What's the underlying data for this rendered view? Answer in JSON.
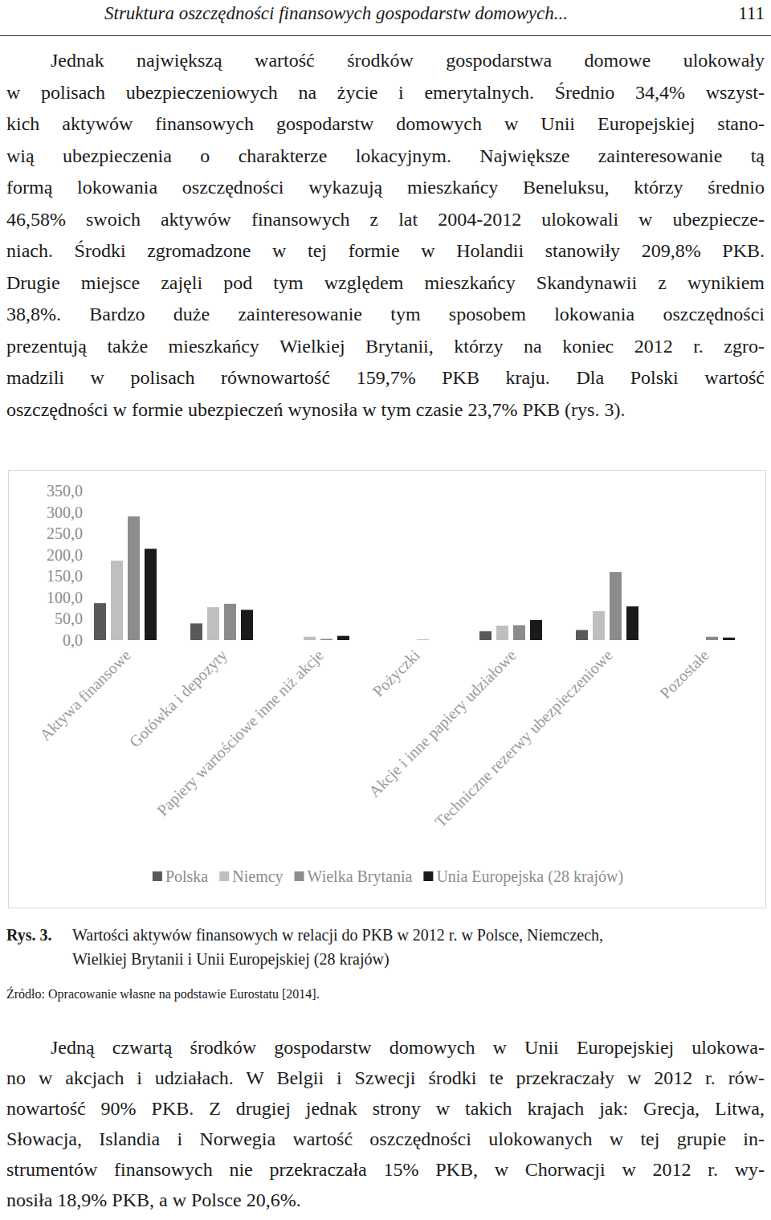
{
  "header": {
    "title": "Struktura oszczędności finansowych gospodarstw domowych...",
    "page": "111"
  },
  "text_before": [
    "Jednak największą wartość środków gospodarstwa domowe ulokowały",
    "w polisach ubezpieczeniowych na życie i emerytalnych. Średnio 34,4% wszyst-",
    "kich aktywów finansowych gospodarstw domowych w Unii Europejskiej stano-",
    "wią ubezpieczenia o charakterze lokacyjnym. Największe zainteresowanie tą",
    "formą lokowania oszczędności wykazują mieszkańcy Beneluksu, którzy średnio",
    "46,58% swoich aktywów finansowych z lat 2004-2012 ulokowali w ubezpiecze-",
    "niach. Środki zgromadzone w tej formie w Holandii stanowiły 209,8% PKB.",
    "Drugie miejsce zajęli pod tym względem mieszkańcy Skandynawii z wynikiem",
    "38,8%. Bardzo duże zainteresowanie tym sposobem lokowania oszczędności",
    "prezentują także mieszkańcy Wielkiej Brytanii, którzy na koniec 2012 r. zgro-",
    "madzili w polisach równowartość 159,7% PKB kraju. Dla Polski wartość",
    "oszczędności w formie ubezpieczeń wynosiła w tym czasie 23,7% PKB (rys. 3)."
  ],
  "chart_data": {
    "type": "bar",
    "categories": [
      "Aktywa finansowe",
      "Gotówka i depozyty",
      "Papiery wartościowe inne niż akcje",
      "Pożyczki",
      "Akcje i inne papiery udziałowe",
      "Techniczne rezerwy ubezpieczeniowe",
      "Pozostałe"
    ],
    "series": [
      {
        "name": "Polska",
        "color": "#595959",
        "values": [
          86.5,
          39,
          0,
          0,
          20.6,
          23.7,
          0
        ]
      },
      {
        "name": "Niemcy",
        "color": "#bfbfbf",
        "values": [
          186,
          77,
          8,
          0,
          34,
          68,
          0
        ]
      },
      {
        "name": "Wielka Brytania",
        "color": "#8c8c8c",
        "values": [
          290,
          85,
          3,
          1,
          35,
          159.7,
          8
        ]
      },
      {
        "name": "Unia Europejska (28 krajów)",
        "color": "#1a1a1a",
        "values": [
          214,
          71,
          10,
          0,
          47,
          79,
          6
        ]
      }
    ],
    "ylim": [
      0,
      350
    ],
    "yticks": [
      {
        "value": 0,
        "label": "0,0"
      },
      {
        "value": 50,
        "label": "50,0"
      },
      {
        "value": 100,
        "label": "100,0"
      },
      {
        "value": 150,
        "label": "150,0"
      },
      {
        "value": 200,
        "label": "200,0"
      },
      {
        "value": 250,
        "label": "250,0"
      },
      {
        "value": 300,
        "label": "300,0"
      },
      {
        "value": 350,
        "label": "350,0"
      }
    ],
    "grid": false,
    "legend": "bottom",
    "data_labels": false
  },
  "figure": {
    "label": "Rys. 3.",
    "caption": [
      "Wartości aktywów finansowych w relacji do PKB w 2012 r. w Polsce, Niemczech,",
      "Wielkiej Brytanii i Unii Europejskiej (28 krajów)"
    ],
    "source": "Źródło: Opracowanie własne na podstawie Eurostatu [2014]."
  },
  "text_after": [
    "Jedną czwartą środków gospodarstw domowych w Unii Europejskiej ulokowa-",
    "no w akcjach i udziałach. W Belgii i Szwecji środki te przekraczały w 2012 r. rów-",
    "nowartość 90% PKB. Z drugiej jednak strony w takich krajach jak: Grecja, Litwa,",
    "Słowacja, Islandia i Norwegia wartość oszczędności ulokowanych w tej grupie in-",
    "strumentów finansowych nie przekraczała 15% PKB, w Chorwacji w 2012 r. wy-",
    "nosiła 18,9% PKB, a w Polsce 20,6%."
  ]
}
